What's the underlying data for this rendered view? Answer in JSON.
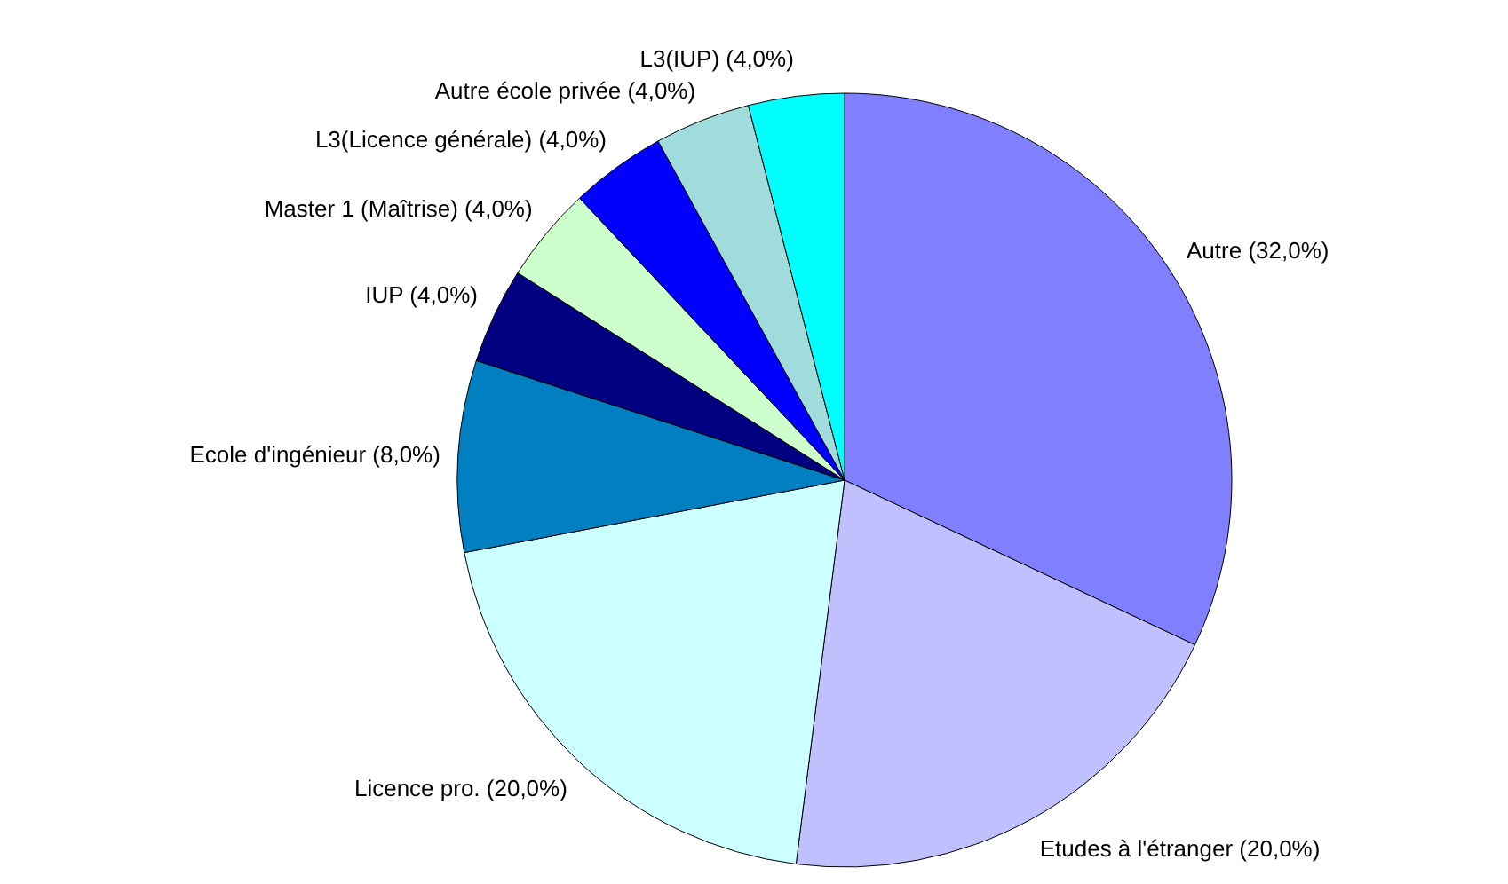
{
  "chart_data": {
    "type": "pie",
    "categories": [
      "Autre",
      "Etudes à l'étranger",
      "Licence pro.",
      "Ecole d'ingénieur",
      "IUP",
      "Master 1 (Maîtrise)",
      "L3(Licence générale)",
      "Autre école privée",
      "L3(IUP)"
    ],
    "values": [
      32,
      20,
      20,
      8,
      4,
      4,
      4,
      4,
      4
    ],
    "value_labels": [
      "(32,0%)",
      "(20,0%)",
      "(20,0%)",
      "(8,0%)",
      "(4,0%)",
      "(4,0%)",
      "(4,0%)",
      "(4,0%)",
      "(4,0%)"
    ],
    "colors": [
      "#8080ff",
      "#c0c0ff",
      "#ccffff",
      "#0080c0",
      "#000080",
      "#ccffcc",
      "#0000ff",
      "#a0dcdc",
      "#00ffff"
    ]
  }
}
